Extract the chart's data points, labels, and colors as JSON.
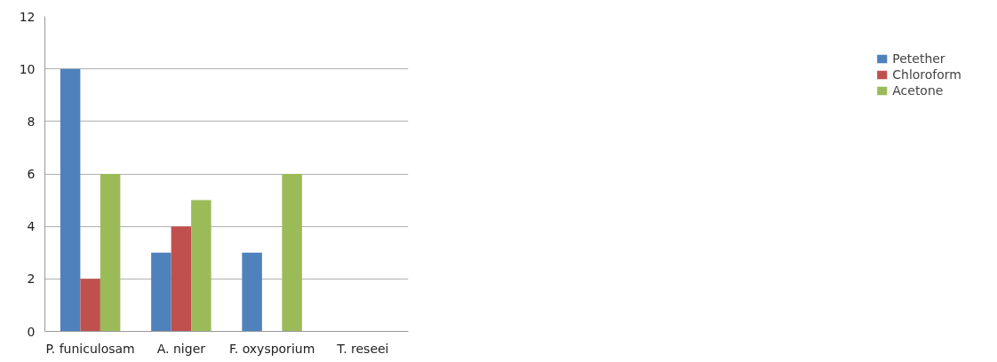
{
  "chart_data": {
    "type": "bar",
    "categories": [
      "P. funiculosam",
      "A. niger",
      "F. oxysporium",
      "T. reseei"
    ],
    "series": [
      {
        "name": "Petether",
        "color": "#4f81bd",
        "values": [
          10,
          3,
          3,
          0
        ]
      },
      {
        "name": "Chloroform",
        "color": "#c0504d",
        "values": [
          2,
          4,
          0,
          0
        ]
      },
      {
        "name": "Acetone",
        "color": "#9bbb59",
        "values": [
          6,
          5,
          6,
          0
        ]
      }
    ],
    "ylim": [
      0,
      12
    ],
    "yticks": [
      0,
      2,
      4,
      6,
      8,
      10,
      12
    ],
    "grid": "y",
    "legend": "right"
  }
}
